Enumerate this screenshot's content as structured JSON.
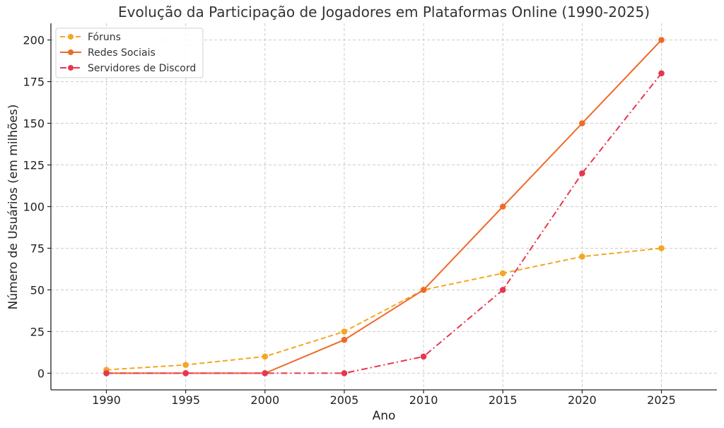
{
  "chart_data": {
    "type": "line",
    "title": "Evolução da Participação de Jogadores em Plataformas Online (1990-2025)",
    "xlabel": "Ano",
    "ylabel": "Número de Usuários (em milhões)",
    "x": [
      1990,
      1995,
      2000,
      2005,
      2010,
      2015,
      2020,
      2025
    ],
    "xlim": [
      1986.5,
      2028.5
    ],
    "ylim": [
      -10,
      210
    ],
    "yticks": [
      0,
      25,
      50,
      75,
      100,
      125,
      150,
      175,
      200
    ],
    "grid": true,
    "legend_position": "top-left",
    "series": [
      {
        "name": "Fóruns",
        "color": "#F5A623",
        "dash": "dashed",
        "values": [
          2,
          5,
          10,
          25,
          50,
          60,
          70,
          75
        ]
      },
      {
        "name": "Redes Sociais",
        "color": "#EE6A2A",
        "dash": "solid",
        "values": [
          0,
          0,
          0,
          20,
          50,
          100,
          150,
          200
        ]
      },
      {
        "name": "Servidores de Discord",
        "color": "#E8364F",
        "dash": "dashdot",
        "values": [
          0,
          0,
          0,
          0,
          10,
          50,
          120,
          180
        ]
      }
    ]
  }
}
